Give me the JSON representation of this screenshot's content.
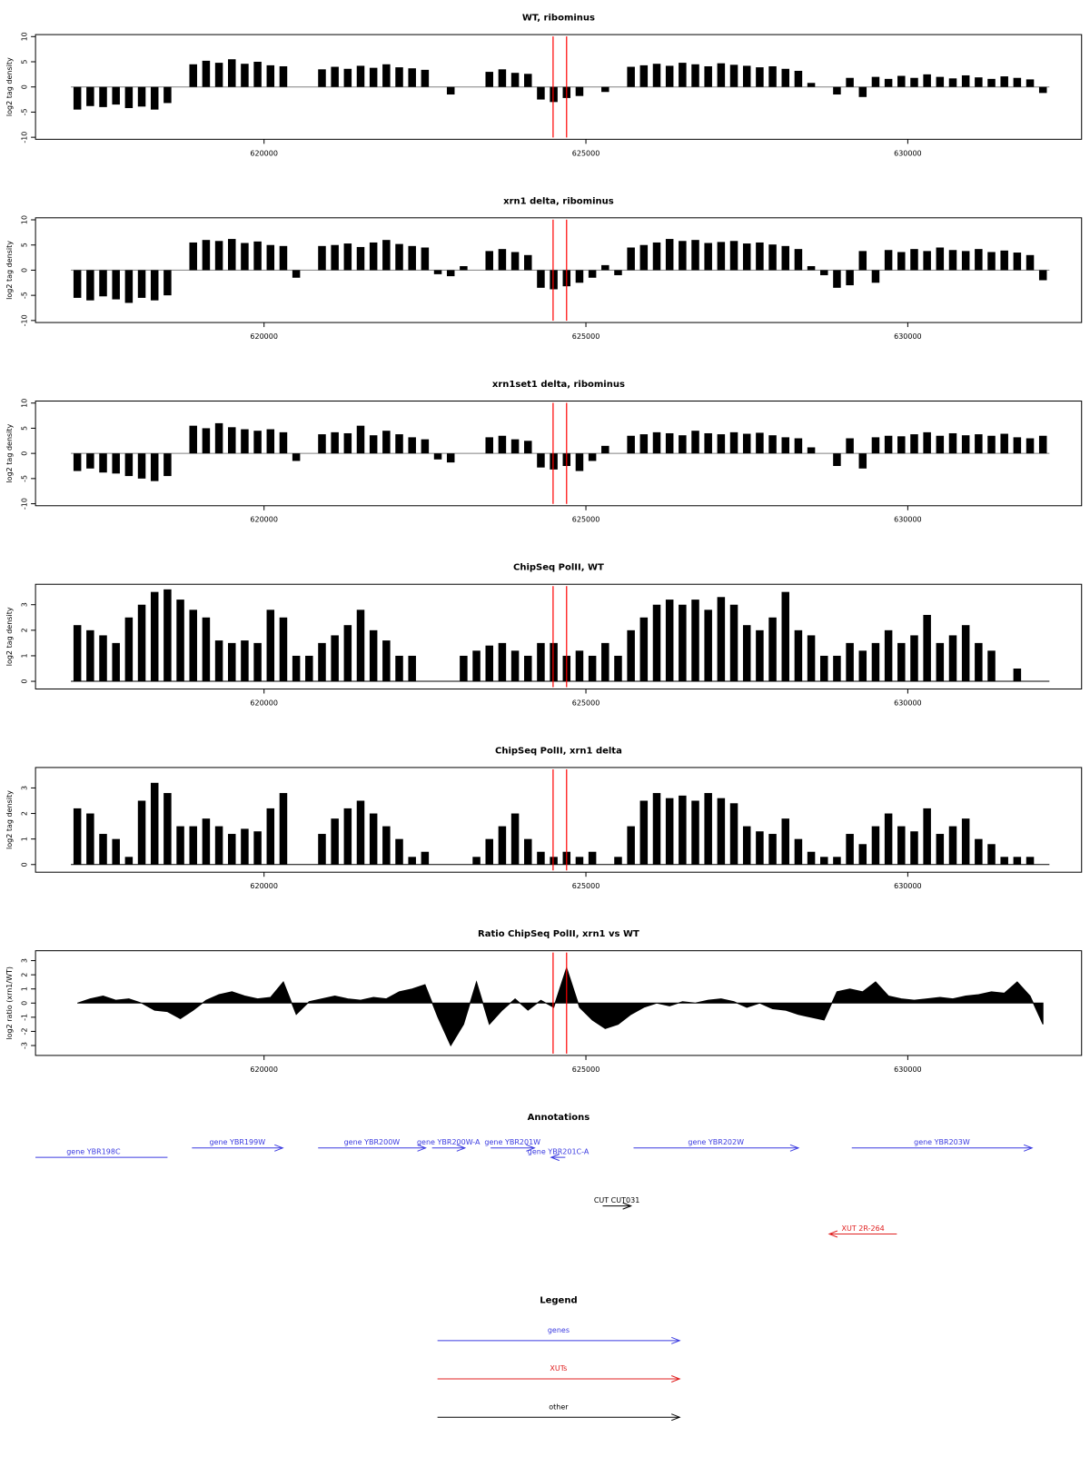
{
  "chart_data": [
    {
      "type": "bar",
      "title": "WT, ribominus",
      "ylabel": "log2 tag density",
      "color": "#000000",
      "baseline_color": "#808080",
      "x": [
        617100,
        617300,
        617500,
        617700,
        617900,
        618100,
        618300,
        618500,
        618700,
        618900,
        619100,
        619300,
        619500,
        619700,
        619900,
        620100,
        620300,
        620500,
        620700,
        620900,
        621100,
        621300,
        621500,
        621700,
        621900,
        622100,
        622300,
        622500,
        622700,
        622900,
        623100,
        623300,
        623500,
        623700,
        623900,
        624100,
        624300,
        624500,
        624700,
        624900,
        625100,
        625300,
        625500,
        625700,
        625900,
        626100,
        626300,
        626500,
        626700,
        626900,
        627100,
        627300,
        627500,
        627700,
        627900,
        628100,
        628300,
        628500,
        628700,
        628900,
        629100,
        629300,
        629500,
        629700,
        629900,
        630100,
        630300,
        630500,
        630700,
        630900,
        631100,
        631300,
        631500,
        631700,
        631900,
        632100
      ],
      "values": [
        -4.5,
        -3.8,
        -4,
        -3.5,
        -4.2,
        -3.9,
        -4.5,
        -3.2,
        null,
        4.5,
        5.2,
        4.8,
        5.5,
        4.6,
        5,
        4.3,
        4.1,
        null,
        null,
        3.5,
        4,
        3.6,
        4.2,
        3.8,
        4.5,
        3.9,
        3.7,
        3.4,
        null,
        -1.5,
        null,
        null,
        3,
        3.5,
        2.8,
        2.6,
        -2.5,
        -3,
        -2.2,
        -1.8,
        null,
        -1,
        null,
        4,
        4.3,
        4.6,
        4.2,
        4.8,
        4.5,
        4.1,
        4.7,
        4.4,
        4.2,
        3.9,
        4.1,
        3.6,
        3.2,
        0.8,
        null,
        -1.5,
        1.8,
        -2,
        2,
        1.6,
        2.2,
        1.8,
        2.5,
        2,
        1.7,
        2.3,
        1.9,
        1.6,
        2.1,
        1.8,
        1.5,
        -1.2
      ],
      "xlim": [
        616450,
        632700
      ],
      "xticks": [
        620000,
        625000,
        630000
      ],
      "ylim": [
        -10.4,
        10.4
      ],
      "yticks": [
        -10,
        -5,
        0,
        5,
        10
      ],
      "highlight_x": [
        624490,
        624700
      ],
      "highlight_color": "#ff0000"
    },
    {
      "type": "bar",
      "title": "xrn1 delta, ribominus",
      "ylabel": "log2 tag density",
      "color": "#000000",
      "baseline_color": "#808080",
      "x": [
        617100,
        617300,
        617500,
        617700,
        617900,
        618100,
        618300,
        618500,
        618700,
        618900,
        619100,
        619300,
        619500,
        619700,
        619900,
        620100,
        620300,
        620500,
        620700,
        620900,
        621100,
        621300,
        621500,
        621700,
        621900,
        622100,
        622300,
        622500,
        622700,
        622900,
        623100,
        623300,
        623500,
        623700,
        623900,
        624100,
        624300,
        624500,
        624700,
        624900,
        625100,
        625300,
        625500,
        625700,
        625900,
        626100,
        626300,
        626500,
        626700,
        626900,
        627100,
        627300,
        627500,
        627700,
        627900,
        628100,
        628300,
        628500,
        628700,
        628900,
        629100,
        629300,
        629500,
        629700,
        629900,
        630100,
        630300,
        630500,
        630700,
        630900,
        631100,
        631300,
        631500,
        631700,
        631900,
        632100
      ],
      "values": [
        -5.5,
        -6,
        -5.2,
        -5.8,
        -6.5,
        -5.5,
        -6,
        -5,
        null,
        5.5,
        6,
        5.8,
        6.2,
        5.4,
        5.7,
        5,
        4.8,
        -1.5,
        null,
        4.8,
        5,
        5.3,
        4.6,
        5.5,
        6,
        5.2,
        4.8,
        4.5,
        -0.8,
        -1.2,
        0.8,
        null,
        3.8,
        4.2,
        3.6,
        3,
        -3.5,
        -3.8,
        -3.2,
        -2.5,
        -1.5,
        1,
        -1,
        4.5,
        5,
        5.5,
        6.2,
        5.8,
        6,
        5.4,
        5.6,
        5.8,
        5.3,
        5.5,
        5.1,
        4.8,
        4.2,
        0.8,
        -1,
        -3.5,
        -3,
        3.8,
        -2.5,
        4,
        3.6,
        4.2,
        3.8,
        4.5,
        4,
        3.8,
        4.2,
        3.6,
        3.9,
        3.5,
        3,
        -2
      ],
      "xlim": [
        616450,
        632700
      ],
      "xticks": [
        620000,
        625000,
        630000
      ],
      "ylim": [
        -10.4,
        10.4
      ],
      "yticks": [
        -10,
        -5,
        0,
        5,
        10
      ],
      "highlight_x": [
        624490,
        624700
      ],
      "highlight_color": "#ff0000"
    },
    {
      "type": "bar",
      "title": "xrn1set1 delta, ribominus",
      "ylabel": "log2 tag density",
      "color": "#000000",
      "baseline_color": "#808080",
      "x": [
        617100,
        617300,
        617500,
        617700,
        617900,
        618100,
        618300,
        618500,
        618700,
        618900,
        619100,
        619300,
        619500,
        619700,
        619900,
        620100,
        620300,
        620500,
        620700,
        620900,
        621100,
        621300,
        621500,
        621700,
        621900,
        622100,
        622300,
        622500,
        622700,
        622900,
        623100,
        623300,
        623500,
        623700,
        623900,
        624100,
        624300,
        624500,
        624700,
        624900,
        625100,
        625300,
        625500,
        625700,
        625900,
        626100,
        626300,
        626500,
        626700,
        626900,
        627100,
        627300,
        627500,
        627700,
        627900,
        628100,
        628300,
        628500,
        628700,
        628900,
        629100,
        629300,
        629500,
        629700,
        629900,
        630100,
        630300,
        630500,
        630700,
        630900,
        631100,
        631300,
        631500,
        631700,
        631900,
        632100
      ],
      "values": [
        -3.5,
        -3,
        -3.8,
        -4,
        -4.5,
        -5,
        -5.5,
        -4.5,
        null,
        5.5,
        5,
        6,
        5.2,
        4.8,
        4.5,
        4.8,
        4.2,
        -1.5,
        null,
        3.8,
        4.2,
        4,
        5.5,
        3.6,
        4.5,
        3.8,
        3.2,
        2.8,
        -1.2,
        -1.8,
        null,
        null,
        3.2,
        3.5,
        2.8,
        2.5,
        -2.8,
        -3.2,
        -2.5,
        -3.5,
        -1.5,
        1.5,
        null,
        3.5,
        3.8,
        4.2,
        4,
        3.6,
        4.5,
        4,
        3.8,
        4.2,
        3.9,
        4.1,
        3.6,
        3.2,
        3,
        1.2,
        null,
        -2.5,
        3,
        -3,
        3.2,
        3.5,
        3.4,
        3.8,
        4.2,
        3.5,
        4,
        3.6,
        3.8,
        3.5,
        3.9,
        3.2,
        3,
        3.5
      ],
      "xlim": [
        616450,
        632700
      ],
      "xticks": [
        620000,
        625000,
        630000
      ],
      "ylim": [
        -10.4,
        10.4
      ],
      "yticks": [
        -10,
        -5,
        0,
        5,
        10
      ],
      "highlight_x": [
        624490,
        624700
      ],
      "highlight_color": "#ff0000"
    },
    {
      "type": "bar",
      "title": "ChipSeq PolII, WT",
      "ylabel": "log2 tag density",
      "color": "#000000",
      "baseline_color": "#000000",
      "x": [
        617100,
        617300,
        617500,
        617700,
        617900,
        618100,
        618300,
        618500,
        618700,
        618900,
        619100,
        619300,
        619500,
        619700,
        619900,
        620100,
        620300,
        620500,
        620700,
        620900,
        621100,
        621300,
        621500,
        621700,
        621900,
        622100,
        622300,
        622500,
        622700,
        622900,
        623100,
        623300,
        623500,
        623700,
        623900,
        624100,
        624300,
        624500,
        624700,
        624900,
        625100,
        625300,
        625500,
        625700,
        625900,
        626100,
        626300,
        626500,
        626700,
        626900,
        627100,
        627300,
        627500,
        627700,
        627900,
        628100,
        628300,
        628500,
        628700,
        628900,
        629100,
        629300,
        629500,
        629700,
        629900,
        630100,
        630300,
        630500,
        630700,
        630900,
        631100,
        631300,
        631500,
        631700,
        631900,
        632100
      ],
      "values": [
        2.2,
        2,
        1.8,
        1.5,
        2.5,
        3,
        3.5,
        3.6,
        3.2,
        2.8,
        2.5,
        1.6,
        1.5,
        1.6,
        1.5,
        2.8,
        2.5,
        1,
        1,
        1.5,
        1.8,
        2.2,
        2.8,
        2,
        1.6,
        1,
        1,
        null,
        null,
        null,
        1,
        1.2,
        1.4,
        1.5,
        1.2,
        1,
        1.5,
        1.5,
        1,
        1.2,
        1,
        1.5,
        1,
        2,
        2.5,
        3,
        3.2,
        3,
        3.2,
        2.8,
        3.3,
        3,
        2.2,
        2,
        2.5,
        3.5,
        2,
        1.8,
        1,
        1,
        1.5,
        1.2,
        1.5,
        2,
        1.5,
        1.8,
        2.6,
        1.5,
        1.8,
        2.2,
        1.5,
        1.2,
        null,
        0.5,
        null,
        null
      ],
      "xlim": [
        616450,
        632700
      ],
      "xticks": [
        620000,
        625000,
        630000
      ],
      "ylim": [
        -0.3,
        3.8
      ],
      "yticks": [
        0,
        1,
        2,
        3
      ],
      "highlight_x": [
        624490,
        624700
      ],
      "highlight_color": "#ff0000"
    },
    {
      "type": "bar",
      "title": "ChipSeq PolII, xrn1 delta",
      "ylabel": "log2 tag density",
      "color": "#000000",
      "baseline_color": "#000000",
      "x": [
        617100,
        617300,
        617500,
        617700,
        617900,
        618100,
        618300,
        618500,
        618700,
        618900,
        619100,
        619300,
        619500,
        619700,
        619900,
        620100,
        620300,
        620500,
        620700,
        620900,
        621100,
        621300,
        621500,
        621700,
        621900,
        622100,
        622300,
        622500,
        622700,
        622900,
        623100,
        623300,
        623500,
        623700,
        623900,
        624100,
        624300,
        624500,
        624700,
        624900,
        625100,
        625300,
        625500,
        625700,
        625900,
        626100,
        626300,
        626500,
        626700,
        626900,
        627100,
        627300,
        627500,
        627700,
        627900,
        628100,
        628300,
        628500,
        628700,
        628900,
        629100,
        629300,
        629500,
        629700,
        629900,
        630100,
        630300,
        630500,
        630700,
        630900,
        631100,
        631300,
        631500,
        631700,
        631900,
        632100
      ],
      "values": [
        2.2,
        2,
        1.2,
        1,
        0.3,
        2.5,
        3.2,
        2.8,
        1.5,
        1.5,
        1.8,
        1.5,
        1.2,
        1.4,
        1.3,
        2.2,
        2.8,
        null,
        null,
        1.2,
        1.8,
        2.2,
        2.5,
        2,
        1.5,
        1,
        0.3,
        0.5,
        null,
        null,
        null,
        0.3,
        1,
        1.5,
        2,
        1,
        0.5,
        0.3,
        0.5,
        0.3,
        0.5,
        null,
        0.3,
        1.5,
        2.5,
        2.8,
        2.6,
        2.7,
        2.5,
        2.8,
        2.6,
        2.4,
        1.5,
        1.3,
        1.2,
        1.8,
        1,
        0.5,
        0.3,
        0.3,
        1.2,
        0.8,
        1.5,
        2,
        1.5,
        1.3,
        2.2,
        1.2,
        1.5,
        1.8,
        1,
        0.8,
        0.3,
        0.3,
        0.3,
        null
      ],
      "xlim": [
        616450,
        632700
      ],
      "xticks": [
        620000,
        625000,
        630000
      ],
      "ylim": [
        -0.3,
        3.8
      ],
      "yticks": [
        0,
        1,
        2,
        3
      ],
      "highlight_x": [
        624490,
        624700
      ],
      "highlight_color": "#ff0000"
    },
    {
      "type": "area",
      "title": "Ratio ChipSeq PolII, xrn1 vs WT",
      "ylabel": "log2 ratio (xrn1/WT)",
      "color": "#000000",
      "x": [
        617100,
        617300,
        617500,
        617700,
        617900,
        618100,
        618300,
        618500,
        618700,
        618900,
        619100,
        619300,
        619500,
        619700,
        619900,
        620100,
        620300,
        620500,
        620700,
        620900,
        621100,
        621300,
        621500,
        621700,
        621900,
        622100,
        622300,
        622500,
        622700,
        622900,
        623100,
        623300,
        623500,
        623700,
        623900,
        624100,
        624300,
        624500,
        624700,
        624900,
        625100,
        625300,
        625500,
        625700,
        625900,
        626100,
        626300,
        626500,
        626700,
        626900,
        627100,
        627300,
        627500,
        627700,
        627900,
        628100,
        628300,
        628500,
        628700,
        628900,
        629100,
        629300,
        629500,
        629700,
        629900,
        630100,
        630300,
        630500,
        630700,
        630900,
        631100,
        631300,
        631500,
        631700,
        631900,
        632100
      ],
      "values": [
        0,
        0.3,
        0.5,
        0.2,
        0.3,
        0,
        -0.5,
        -0.6,
        -1.1,
        -0.5,
        0.2,
        0.6,
        0.8,
        0.5,
        0.3,
        0.4,
        1.5,
        -0.8,
        0.1,
        0.3,
        0.5,
        0.3,
        0.2,
        0.4,
        0.3,
        0.8,
        1,
        1.3,
        -1,
        -3,
        -1.5,
        1.5,
        -1.5,
        -0.5,
        0.3,
        -0.5,
        0.2,
        -0.3,
        2.5,
        -0.3,
        -1.2,
        -1.8,
        -1.5,
        -0.8,
        -0.3,
        0,
        -0.2,
        0.1,
        0,
        0.2,
        0.3,
        0.1,
        -0.3,
        0,
        -0.4,
        -0.5,
        -0.8,
        -1,
        -1.2,
        0.8,
        1,
        0.8,
        1.5,
        0.5,
        0.3,
        0.2,
        0.3,
        0.4,
        0.3,
        0.5,
        0.6,
        0.8,
        0.7,
        1.5,
        0.5,
        -1.5
      ],
      "xlim": [
        616450,
        632700
      ],
      "xticks": [
        620000,
        625000,
        630000
      ],
      "ylim": [
        -3.7,
        3.7
      ],
      "yticks": [
        -3,
        -2,
        -1,
        0,
        1,
        2,
        3
      ],
      "highlight_x": [
        624490,
        624700
      ],
      "highlight_color": "#ff0000"
    }
  ],
  "annotations": {
    "title": "Annotations",
    "xlim": [
      616450,
      632700
    ],
    "features": [
      {
        "label": "gene YBR198C",
        "start": 616200,
        "end": 618500,
        "strand": "-",
        "kind": "gene",
        "color": "#3a3ae0"
      },
      {
        "label": "gene YBR199W",
        "start": 618880,
        "end": 620290,
        "strand": "+",
        "kind": "gene",
        "color": "#3a3ae0"
      },
      {
        "label": "gene YBR200W",
        "start": 620840,
        "end": 622510,
        "strand": "+",
        "kind": "gene",
        "color": "#3a3ae0"
      },
      {
        "label": "gene YBR200W-A",
        "start": 622610,
        "end": 623120,
        "strand": "+",
        "kind": "gene",
        "color": "#3a3ae0"
      },
      {
        "label": "gene YBR201W",
        "start": 623520,
        "end": 624200,
        "strand": "+",
        "kind": "gene",
        "color": "#3a3ae0"
      },
      {
        "label": "gene YBR201C-A",
        "start": 624460,
        "end": 624680,
        "strand": "-",
        "kind": "gene",
        "color": "#3a3ae0"
      },
      {
        "label": "gene YBR202W",
        "start": 625740,
        "end": 628300,
        "strand": "+",
        "kind": "gene",
        "color": "#3a3ae0"
      },
      {
        "label": "gene YBR203W",
        "start": 629130,
        "end": 631930,
        "strand": "+",
        "kind": "gene",
        "color": "#3a3ae0"
      },
      {
        "label": "CUT CUT031",
        "start": 625260,
        "end": 625700,
        "strand": "+",
        "kind": "CUT",
        "color": "#000000"
      },
      {
        "label": "XUT 2R-264",
        "start": 628780,
        "end": 629830,
        "strand": "-",
        "kind": "XUT",
        "color": "#e02020"
      }
    ]
  },
  "legend": {
    "title": "Legend",
    "entries": [
      {
        "label": "genes",
        "color": "#3a3ae0"
      },
      {
        "label": "XUTs",
        "color": "#e02020"
      },
      {
        "label": "other",
        "color": "#000000"
      }
    ]
  }
}
